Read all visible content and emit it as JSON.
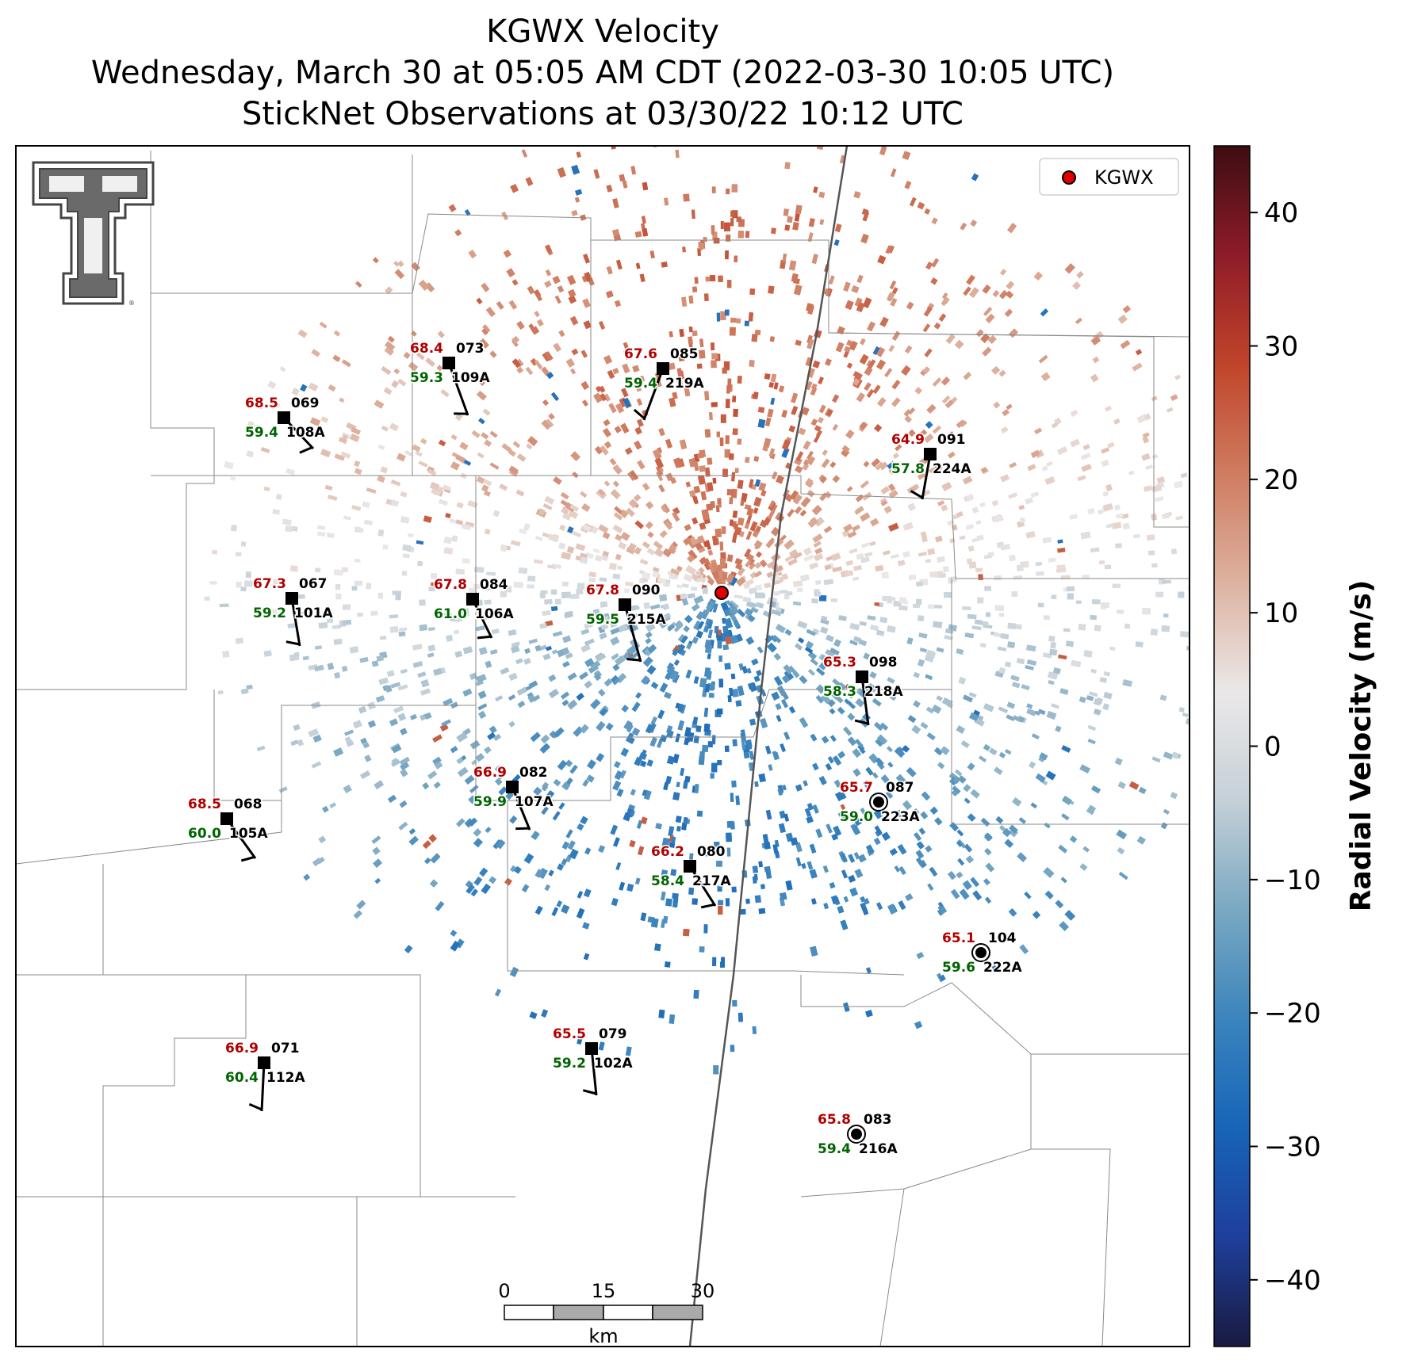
{
  "title": {
    "line1": "KGWX Velocity",
    "line2": "Wednesday, March 30 at 05:05 AM CDT (2022-03-30 10:05 UTC)",
    "line3": "StickNet Observations at 03/30/22 10:12 UTC"
  },
  "legend": {
    "label": "KGWX",
    "marker_color": "#e00000"
  },
  "radar": {
    "name": "KGWX"
  },
  "colorbar": {
    "label": "Radial Velocity (m/s)",
    "min": -45,
    "max": 45,
    "ticks": [
      {
        "value": 40,
        "label": "40"
      },
      {
        "value": 30,
        "label": "30"
      },
      {
        "value": 20,
        "label": "20"
      },
      {
        "value": 10,
        "label": "10"
      },
      {
        "value": 0,
        "label": "0"
      },
      {
        "value": -10,
        "label": "−10"
      },
      {
        "value": -20,
        "label": "−20"
      },
      {
        "value": -30,
        "label": "−30"
      },
      {
        "value": -40,
        "label": "−40"
      }
    ],
    "colors": [
      "#1a1a40",
      "#1e3f9c",
      "#1764b8",
      "#3b84bd",
      "#7aa8c2",
      "#c4d0d8",
      "#ebe8e8",
      "#ddb2a0",
      "#cf7c60",
      "#c0442a",
      "#8e1c28",
      "#3d0d12"
    ]
  },
  "scale_bar": {
    "ticks": [
      "0",
      "15",
      "30"
    ],
    "unit": "km"
  },
  "stations": [
    {
      "id": "073",
      "sub": "109A",
      "temp": "68.4",
      "dew": "59.3"
    },
    {
      "id": "085",
      "sub": "219A",
      "temp": "67.6",
      "dew": "59.4"
    },
    {
      "id": "069",
      "sub": "108A",
      "temp": "68.5",
      "dew": "59.4"
    },
    {
      "id": "091",
      "sub": "224A",
      "temp": "64.9",
      "dew": "57.8"
    },
    {
      "id": "067",
      "sub": "101A",
      "temp": "67.3",
      "dew": "59.2"
    },
    {
      "id": "084",
      "sub": "106A",
      "temp": "67.8",
      "dew": "61.0"
    },
    {
      "id": "090",
      "sub": "215A",
      "temp": "67.8",
      "dew": "59.5"
    },
    {
      "id": "098",
      "sub": "218A",
      "temp": "65.3",
      "dew": "58.3"
    },
    {
      "id": "082",
      "sub": "107A",
      "temp": "66.9",
      "dew": "59.9"
    },
    {
      "id": "087",
      "sub": "223A",
      "temp": "65.7",
      "dew": "59.0"
    },
    {
      "id": "068",
      "sub": "105A",
      "temp": "68.5",
      "dew": "60.0"
    },
    {
      "id": "080",
      "sub": "217A",
      "temp": "66.2",
      "dew": "58.4"
    },
    {
      "id": "104",
      "sub": "222A",
      "temp": "65.1",
      "dew": "59.6"
    },
    {
      "id": "079",
      "sub": "102A",
      "temp": "65.5",
      "dew": "59.2"
    },
    {
      "id": "071",
      "sub": "112A",
      "temp": "66.9",
      "dew": "60.4"
    },
    {
      "id": "083",
      "sub": "216A",
      "temp": "65.8",
      "dew": "59.4"
    }
  ]
}
